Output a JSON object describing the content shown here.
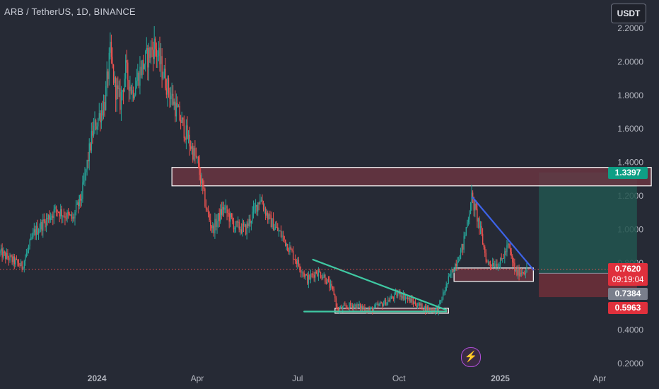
{
  "header": {
    "title": "ARB / TetherUS, 1D, BINANCE",
    "currency_button": "USDT"
  },
  "price_tags": {
    "resistance": "1.3397",
    "current_price": "0.7620",
    "countdown": "09:19:04",
    "entry": "0.7384",
    "stop": "0.5963"
  },
  "icons": {
    "flash": "lightning-icon"
  },
  "colors": {
    "background": "#262a35",
    "up": "#26a69a",
    "down": "#ef5350",
    "trendline_teal": "#3fc9a3",
    "trendline_blue": "#3d63e8",
    "zone_fill": "#6e3642",
    "zone_border": "#ffffff",
    "target_fill": "#22554f",
    "stop_fill": "#6b2f38"
  },
  "chart_data": {
    "type": "candlestick",
    "title": "ARB / TetherUS, 1D, BINANCE",
    "y_ticks": [
      "2.2000",
      "2.0000",
      "1.8000",
      "1.6000",
      "1.4000",
      "1.2000",
      "1.0000",
      "0.8000",
      "0.6000",
      "0.4000",
      "0.2000"
    ],
    "y_range": [
      0.16,
      2.35
    ],
    "x_ticks": [
      "2024",
      "Apr",
      "Jul",
      "Oct",
      "2025",
      "Apr"
    ],
    "x_range": [
      "2023-10-05",
      "2025-05-25"
    ],
    "price_path": [
      [
        "2023-10-05",
        0.86
      ],
      [
        "2023-10-25",
        0.78
      ],
      [
        "2023-11-05",
        0.98
      ],
      [
        "2023-11-25",
        1.12
      ],
      [
        "2023-12-10",
        1.06
      ],
      [
        "2023-12-18",
        1.2
      ],
      [
        "2023-12-28",
        1.58
      ],
      [
        "2024-01-08",
        1.76
      ],
      [
        "2024-01-13",
        2.05
      ],
      [
        "2024-01-17",
        1.86
      ],
      [
        "2024-01-22",
        1.76
      ],
      [
        "2024-01-27",
        1.95
      ],
      [
        "2024-02-02",
        1.82
      ],
      [
        "2024-02-10",
        1.96
      ],
      [
        "2024-02-22",
        2.1
      ],
      [
        "2024-03-05",
        1.85
      ],
      [
        "2024-03-20",
        1.6
      ],
      [
        "2024-04-01",
        1.4
      ],
      [
        "2024-04-10",
        1.1
      ],
      [
        "2024-04-15",
        1.0
      ],
      [
        "2024-04-25",
        1.13
      ],
      [
        "2024-05-05",
        1.02
      ],
      [
        "2024-05-15",
        1.0
      ],
      [
        "2024-05-28",
        1.19
      ],
      [
        "2024-06-05",
        1.06
      ],
      [
        "2024-06-18",
        0.95
      ],
      [
        "2024-07-01",
        0.8
      ],
      [
        "2024-07-10",
        0.7
      ],
      [
        "2024-07-18",
        0.75
      ],
      [
        "2024-07-25",
        0.72
      ],
      [
        "2024-08-03",
        0.62
      ],
      [
        "2024-08-06",
        0.52
      ],
      [
        "2024-08-20",
        0.55
      ],
      [
        "2024-09-05",
        0.52
      ],
      [
        "2024-09-20",
        0.57
      ],
      [
        "2024-10-01",
        0.62
      ],
      [
        "2024-10-15",
        0.56
      ],
      [
        "2024-10-25",
        0.53
      ],
      [
        "2024-11-05",
        0.52
      ],
      [
        "2024-11-15",
        0.7
      ],
      [
        "2024-11-28",
        0.9
      ],
      [
        "2024-12-06",
        1.19
      ],
      [
        "2024-12-12",
        1.05
      ],
      [
        "2024-12-20",
        0.8
      ],
      [
        "2025-01-01",
        0.8
      ],
      [
        "2025-01-08",
        0.9
      ],
      [
        "2025-01-15",
        0.74
      ],
      [
        "2025-01-25",
        0.76
      ]
    ],
    "levels": {
      "current_price": 0.762,
      "entry": 0.7384,
      "stop": 0.5963,
      "target": 1.3397
    },
    "zones": [
      {
        "name": "supply-zone",
        "x": [
          "2024-03-09",
          "2025-05-18"
        ],
        "y": [
          1.26,
          1.37
        ]
      },
      {
        "name": "lower-support-zone",
        "x": [
          "2024-08-04",
          "2024-11-15"
        ],
        "y": [
          0.5,
          0.53
        ]
      },
      {
        "name": "mid-support-zone",
        "x": [
          "2024-11-20",
          "2025-01-31"
        ],
        "y": [
          0.69,
          0.77
        ]
      }
    ],
    "trendlines": [
      {
        "name": "triangle-upper-trendline",
        "from": [
          "2024-07-15",
          0.82
        ],
        "to": [
          "2024-11-13",
          0.52
        ],
        "color": "teal"
      },
      {
        "name": "triangle-lower-trendline",
        "from": [
          "2024-07-07",
          0.51
        ],
        "to": [
          "2024-11-13",
          0.51
        ],
        "color": "teal"
      },
      {
        "name": "descending-trendline",
        "from": [
          "2024-12-07",
          1.19
        ],
        "to": [
          "2025-01-31",
          0.76
        ],
        "color": "blue"
      }
    ],
    "position": {
      "from": "2025-02-05",
      "to": "2025-05-05",
      "entry": 0.7384,
      "target": 1.3397,
      "stop": 0.5963
    },
    "grid": false,
    "legend": "none"
  }
}
